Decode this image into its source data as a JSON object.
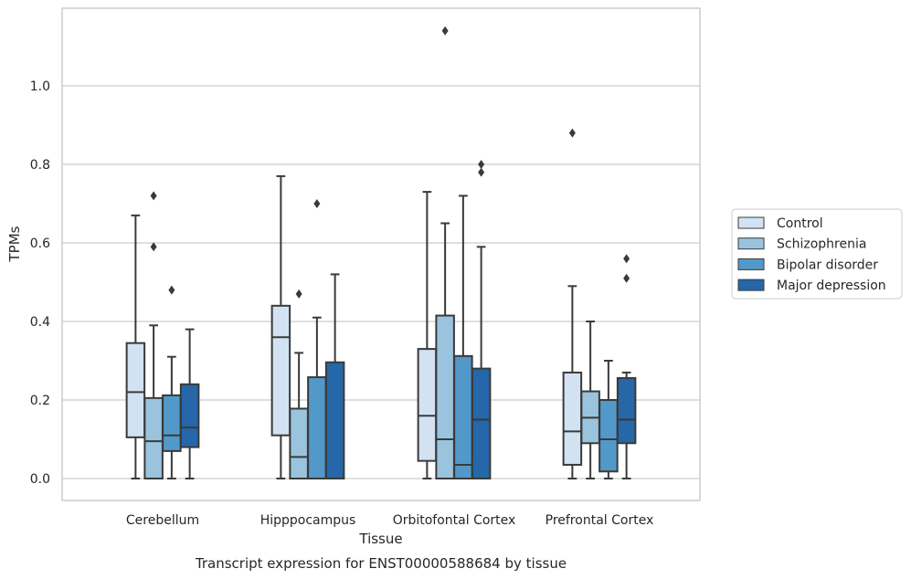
{
  "chart_data": {
    "type": "boxplot",
    "title": "",
    "caption": "Transcript expression for ENST00000588684 by tissue",
    "xlabel": "Tissue",
    "ylabel": "TPMs",
    "ylim": [
      -0.055,
      1.2
    ],
    "yticks": [
      0.0,
      0.2,
      0.4,
      0.6,
      0.8,
      1.0
    ],
    "ytick_labels": [
      "0.0",
      "0.2",
      "0.4",
      "0.6",
      "0.8",
      "1.0"
    ],
    "grid": "horizontal",
    "legend_placement": "right",
    "categories": [
      "Cerebellum",
      "Hipppocampus",
      "Orbitofontal Cortex",
      "Prefrontal Cortex"
    ],
    "series": [
      {
        "name": "Control",
        "color": "#d2e2f2",
        "boxes": [
          {
            "whislo": 0.0,
            "q1": 0.105,
            "med": 0.22,
            "q3": 0.345,
            "whishi": 0.67,
            "fliers": []
          },
          {
            "whislo": 0.0,
            "q1": 0.11,
            "med": 0.36,
            "q3": 0.44,
            "whishi": 0.77,
            "fliers": []
          },
          {
            "whislo": 0.0,
            "q1": 0.045,
            "med": 0.16,
            "q3": 0.33,
            "whishi": 0.73,
            "fliers": []
          },
          {
            "whislo": 0.0,
            "q1": 0.035,
            "med": 0.12,
            "q3": 0.27,
            "whishi": 0.49,
            "fliers": [
              0.88
            ]
          }
        ]
      },
      {
        "name": "Schizophrenia",
        "color": "#9ac4de",
        "boxes": [
          {
            "whislo": 0.0,
            "q1": 0.0,
            "med": 0.095,
            "q3": 0.205,
            "whishi": 0.39,
            "fliers": [
              0.59,
              0.72
            ]
          },
          {
            "whislo": 0.0,
            "q1": 0.0,
            "med": 0.055,
            "q3": 0.178,
            "whishi": 0.32,
            "fliers": [
              0.47
            ]
          },
          {
            "whislo": 0.0,
            "q1": 0.0,
            "med": 0.1,
            "q3": 0.415,
            "whishi": 0.65,
            "fliers": [
              1.14
            ]
          },
          {
            "whislo": 0.0,
            "q1": 0.09,
            "med": 0.155,
            "q3": 0.222,
            "whishi": 0.4,
            "fliers": []
          }
        ]
      },
      {
        "name": "Bipolar disorder",
        "color": "#5299c9",
        "boxes": [
          {
            "whislo": 0.0,
            "q1": 0.07,
            "med": 0.11,
            "q3": 0.212,
            "whishi": 0.31,
            "fliers": [
              0.48
            ]
          },
          {
            "whislo": 0.0,
            "q1": 0.0,
            "med": 0.0,
            "q3": 0.258,
            "whishi": 0.41,
            "fliers": [
              0.7
            ]
          },
          {
            "whislo": 0.0,
            "q1": 0.0,
            "med": 0.035,
            "q3": 0.312,
            "whishi": 0.72,
            "fliers": []
          },
          {
            "whislo": 0.0,
            "q1": 0.018,
            "med": 0.1,
            "q3": 0.2,
            "whishi": 0.3,
            "fliers": []
          }
        ]
      },
      {
        "name": "Major depression",
        "color": "#2567a8",
        "boxes": [
          {
            "whislo": 0.0,
            "q1": 0.08,
            "med": 0.13,
            "q3": 0.24,
            "whishi": 0.38,
            "fliers": []
          },
          {
            "whislo": 0.0,
            "q1": 0.0,
            "med": 0.0,
            "q3": 0.296,
            "whishi": 0.52,
            "fliers": []
          },
          {
            "whislo": 0.0,
            "q1": 0.0,
            "med": 0.15,
            "q3": 0.28,
            "whishi": 0.59,
            "fliers": [
              0.78,
              0.8
            ]
          },
          {
            "whislo": 0.0,
            "q1": 0.09,
            "med": 0.15,
            "q3": 0.256,
            "whishi": 0.27,
            "fliers": [
              0.51,
              0.56
            ]
          }
        ]
      }
    ]
  }
}
